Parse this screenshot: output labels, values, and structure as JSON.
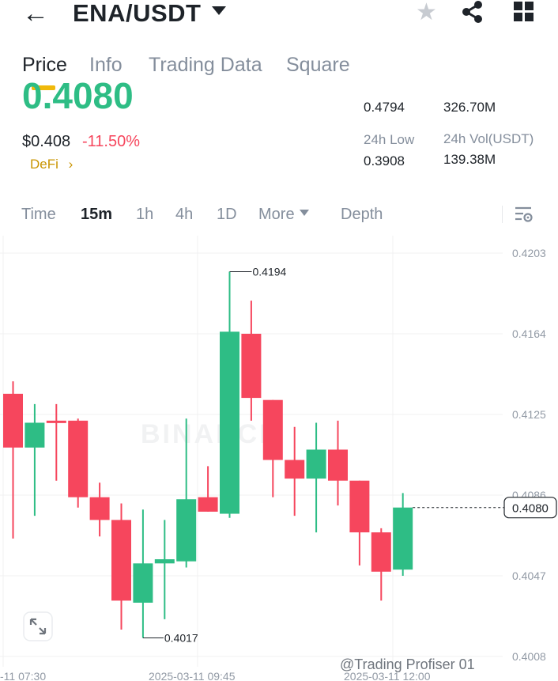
{
  "header": {
    "pair": "ENA/USDT",
    "back_icon": "arrow-left-icon",
    "favorite_icon": "star-icon",
    "share_icon": "share-icon",
    "menu_icon": "grid-icon"
  },
  "tabs": [
    {
      "label": "Price",
      "active": true
    },
    {
      "label": "Info",
      "active": false
    },
    {
      "label": "Trading Data",
      "active": false
    },
    {
      "label": "Square",
      "active": false
    }
  ],
  "ticker": {
    "last_price": "0.4080",
    "usd_price": "$0.408",
    "change_pct": "-11.50%",
    "tag": "DeFi",
    "tag_chevron": "›",
    "stats": [
      {
        "value": "0.4794"
      },
      {
        "value": "326.70M"
      },
      {
        "label": "24h Low",
        "value": "0.3908"
      },
      {
        "label": "24h Vol(USDT)",
        "value": "139.38M"
      }
    ]
  },
  "intervals": [
    {
      "label": "Time",
      "active": false
    },
    {
      "label": "15m",
      "active": true
    },
    {
      "label": "1h",
      "active": false
    },
    {
      "label": "4h",
      "active": false
    },
    {
      "label": "1D",
      "active": false
    },
    {
      "label": "More",
      "active": false
    },
    {
      "label": "Depth",
      "active": false
    }
  ],
  "chart_settings_icon": "chart-settings-icon",
  "expand_icon": "expand-icon",
  "watermark": "BINANCE",
  "credit": "@Trading Profiser 01",
  "colors": {
    "up": "#2ebd85",
    "down": "#f6465d",
    "accent": "#f0b90b"
  },
  "chart_data": {
    "type": "candlestick",
    "interval": "15m",
    "y_ticks": [
      0.4203,
      0.4164,
      0.4125,
      0.4086,
      0.4047,
      0.4008
    ],
    "y_tick_labels": [
      "0.4203",
      "0.4164",
      "0.4125",
      "0.4086",
      "0.4047",
      "0.4008"
    ],
    "x_tick_labels": [
      "-11 07:30",
      "2025-03-11 09:45",
      "2025-03-11 12:00"
    ],
    "current_price": 0.408,
    "current_price_label": "0.4080",
    "high_annotation": {
      "value": 0.4194,
      "label": "0.4194"
    },
    "low_annotation": {
      "value": 0.4017,
      "label": "0.4017"
    },
    "candles": [
      {
        "o": 0.4135,
        "h": 0.4141,
        "l": 0.4065,
        "c": 0.4109
      },
      {
        "o": 0.4109,
        "h": 0.413,
        "l": 0.4076,
        "c": 0.4121
      },
      {
        "o": 0.4122,
        "h": 0.413,
        "l": 0.4093,
        "c": 0.4121
      },
      {
        "o": 0.4122,
        "h": 0.4123,
        "l": 0.408,
        "c": 0.4085
      },
      {
        "o": 0.4085,
        "h": 0.4092,
        "l": 0.4066,
        "c": 0.4074
      },
      {
        "o": 0.4074,
        "h": 0.4082,
        "l": 0.4021,
        "c": 0.4035
      },
      {
        "o": 0.4034,
        "h": 0.4079,
        "l": 0.4017,
        "c": 0.4053
      },
      {
        "o": 0.4053,
        "h": 0.4074,
        "l": 0.4026,
        "c": 0.4055
      },
      {
        "o": 0.4054,
        "h": 0.4123,
        "l": 0.4051,
        "c": 0.4084
      },
      {
        "o": 0.4085,
        "h": 0.41,
        "l": 0.4078,
        "c": 0.4078
      },
      {
        "o": 0.4077,
        "h": 0.4194,
        "l": 0.4075,
        "c": 0.4165
      },
      {
        "o": 0.4164,
        "h": 0.418,
        "l": 0.4122,
        "c": 0.4133
      },
      {
        "o": 0.4132,
        "h": 0.4132,
        "l": 0.4085,
        "c": 0.4103
      },
      {
        "o": 0.4103,
        "h": 0.4119,
        "l": 0.4076,
        "c": 0.4094
      },
      {
        "o": 0.4094,
        "h": 0.4121,
        "l": 0.4068,
        "c": 0.4108
      },
      {
        "o": 0.4108,
        "h": 0.4122,
        "l": 0.4081,
        "c": 0.4093
      },
      {
        "o": 0.4093,
        "h": 0.4093,
        "l": 0.4052,
        "c": 0.4068
      },
      {
        "o": 0.4068,
        "h": 0.407,
        "l": 0.4035,
        "c": 0.4049
      },
      {
        "o": 0.405,
        "h": 0.4087,
        "l": 0.4047,
        "c": 0.408
      }
    ]
  }
}
